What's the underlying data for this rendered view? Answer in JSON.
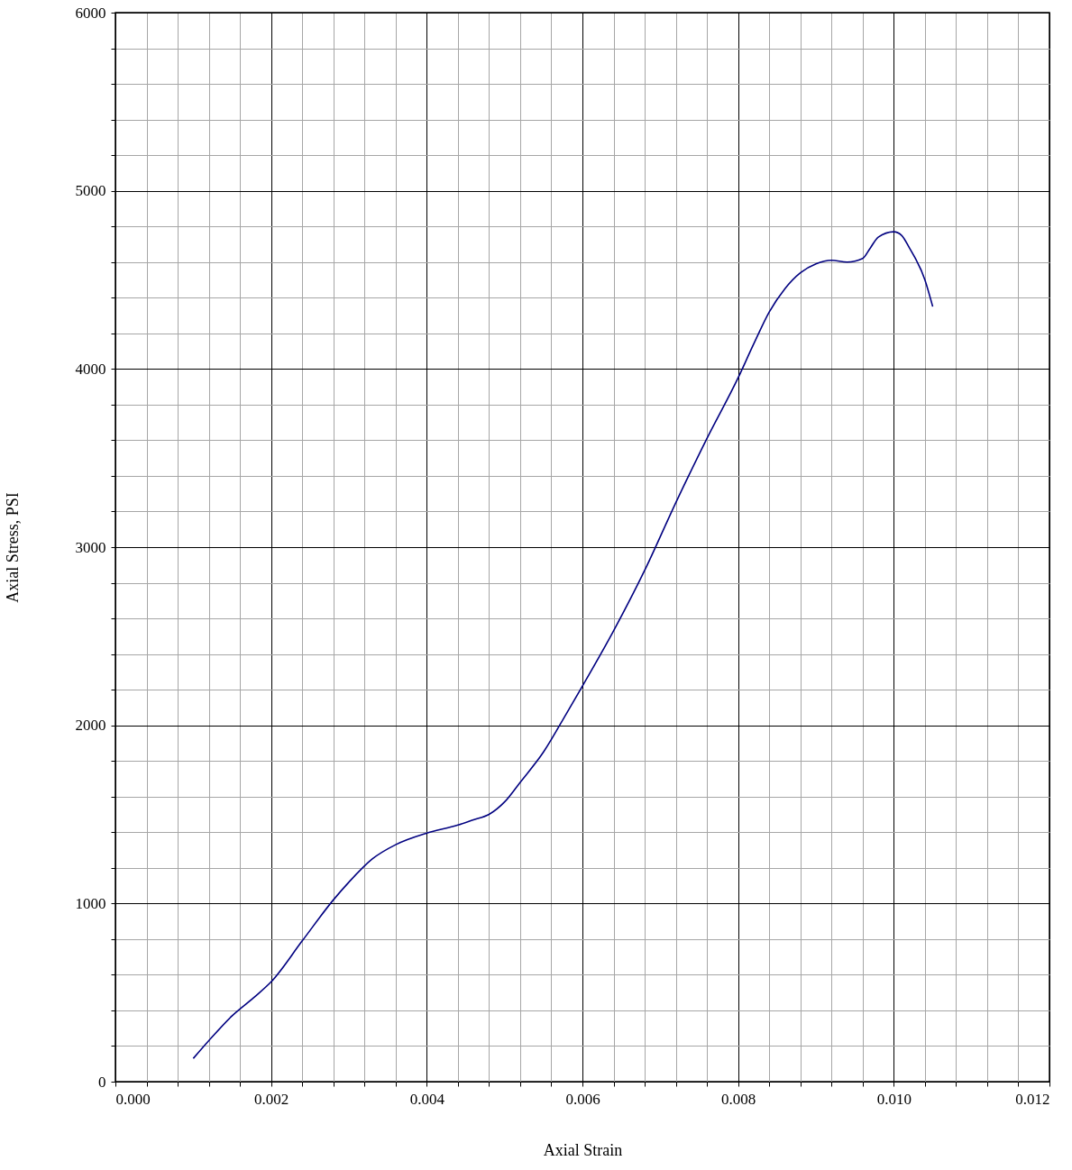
{
  "chart_data": {
    "type": "line",
    "xlabel": "Axial Strain",
    "ylabel": "Axial Stress, PSI",
    "xlim": [
      0,
      0.012
    ],
    "ylim": [
      0,
      6000
    ],
    "xticks": [
      {
        "value": 0,
        "label": "0.000"
      },
      {
        "value": 0.0004,
        "label": null
      },
      {
        "value": 0.0008,
        "label": null
      },
      {
        "value": 0.0012,
        "label": null
      },
      {
        "value": 0.0016,
        "label": null
      },
      {
        "value": 0.002,
        "label": "0.002"
      },
      {
        "value": 0.0024,
        "label": null
      },
      {
        "value": 0.0028,
        "label": null
      },
      {
        "value": 0.0032,
        "label": null
      },
      {
        "value": 0.0036,
        "label": null
      },
      {
        "value": 0.004,
        "label": "0.004"
      },
      {
        "value": 0.0044,
        "label": null
      },
      {
        "value": 0.0048,
        "label": null
      },
      {
        "value": 0.0052,
        "label": null
      },
      {
        "value": 0.0056,
        "label": null
      },
      {
        "value": 0.006,
        "label": "0.006"
      },
      {
        "value": 0.0064,
        "label": null
      },
      {
        "value": 0.0068,
        "label": null
      },
      {
        "value": 0.0072,
        "label": null
      },
      {
        "value": 0.0076,
        "label": null
      },
      {
        "value": 0.008,
        "label": "0.008"
      },
      {
        "value": 0.0084,
        "label": null
      },
      {
        "value": 0.0088,
        "label": null
      },
      {
        "value": 0.0092,
        "label": null
      },
      {
        "value": 0.0096,
        "label": null
      },
      {
        "value": 0.01,
        "label": "0.010"
      },
      {
        "value": 0.0104,
        "label": null
      },
      {
        "value": 0.0108,
        "label": null
      },
      {
        "value": 0.0112,
        "label": null
      },
      {
        "value": 0.0116,
        "label": null
      },
      {
        "value": 0.012,
        "label": "0.012"
      }
    ],
    "yticks": [
      0,
      {
        "value": 200,
        "label": null
      },
      {
        "value": 400,
        "label": null
      },
      {
        "value": 600,
        "label": null
      },
      {
        "value": 800,
        "label": null
      },
      1000,
      {
        "value": 1200,
        "label": null
      },
      {
        "value": 1400,
        "label": null
      },
      {
        "value": 1600,
        "label": null
      },
      {
        "value": 1800,
        "label": null
      },
      2000,
      {
        "value": 2200,
        "label": null
      },
      {
        "value": 2400,
        "label": null
      },
      {
        "value": 2600,
        "label": null
      },
      {
        "value": 2800,
        "label": null
      },
      3000,
      {
        "value": 3200,
        "label": null
      },
      {
        "value": 3400,
        "label": null
      },
      {
        "value": 3600,
        "label": null
      },
      {
        "value": 3800,
        "label": null
      },
      4000,
      {
        "value": 4200,
        "label": null
      },
      {
        "value": 4400,
        "label": null
      },
      {
        "value": 4600,
        "label": null
      },
      {
        "value": 4800,
        "label": null
      },
      5000,
      {
        "value": 5200,
        "label": null
      },
      {
        "value": 5400,
        "label": null
      },
      {
        "value": 5600,
        "label": null
      },
      {
        "value": 5800,
        "label": null
      },
      6000
    ],
    "grid": true,
    "marker": "none",
    "line_style": "solid",
    "x": [
      0.001,
      0.0012,
      0.0015,
      0.0018,
      0.002,
      0.0024,
      0.0028,
      0.003,
      0.0033,
      0.0036,
      0.004,
      0.0044,
      0.0046,
      0.0048,
      0.005,
      0.0052,
      0.0055,
      0.0058,
      0.006,
      0.0064,
      0.0068,
      0.0072,
      0.0076,
      0.008,
      0.0082,
      0.0084,
      0.0086,
      0.0088,
      0.009,
      0.0092,
      0.0094,
      0.0096,
      0.0097,
      0.0098,
      0.01,
      0.0101,
      0.0102,
      0.0104,
      0.0105
    ],
    "series": [
      {
        "color": "#000080",
        "values": [
          130,
          230,
          370,
          480,
          560,
          790,
          1020,
          1120,
          1250,
          1330,
          1395,
          1440,
          1470,
          1500,
          1570,
          1680,
          1850,
          2070,
          2220,
          2530,
          2870,
          3250,
          3610,
          3950,
          4140,
          4320,
          4450,
          4540,
          4590,
          4610,
          4600,
          4620,
          4680,
          4740,
          4770,
          4750,
          4680,
          4500,
          4350
        ]
      }
    ]
  }
}
